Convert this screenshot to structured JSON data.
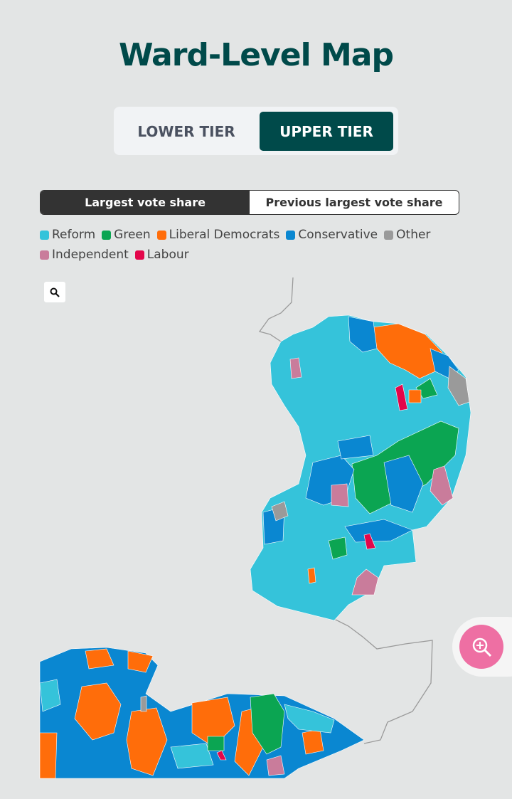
{
  "header": {
    "title": "Ward-Level Map"
  },
  "tier_toggle": {
    "options": [
      "LOWER TIER",
      "UPPER TIER"
    ],
    "selected": 1
  },
  "view_toggle": {
    "options": [
      "Largest vote share",
      "Previous largest vote share"
    ],
    "selected": 0
  },
  "legend": [
    {
      "name": "Reform",
      "color": "#35c3da"
    },
    {
      "name": "Green",
      "color": "#0ba552"
    },
    {
      "name": "Liberal Democrats",
      "color": "#ff6d0a"
    },
    {
      "name": "Conservative",
      "color": "#0a87d1"
    },
    {
      "name": "Other",
      "color": "#9a9a9a"
    },
    {
      "name": "Independent",
      "color": "#c97c9b"
    },
    {
      "name": "Labour",
      "color": "#e3064a"
    }
  ]
}
